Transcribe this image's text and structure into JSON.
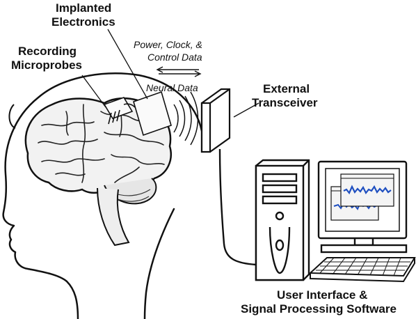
{
  "labels": {
    "implanted_line1": "Implanted",
    "implanted_line2": "Electronics",
    "recording_line1": "Recording",
    "recording_line2": "Microprobes",
    "power_line1": "Power, Clock, &",
    "power_line2": "Control Data",
    "neural_data": "Neural Data",
    "external_line1": "External",
    "external_line2": "Transceiver",
    "ui_line1": "User Interface &",
    "ui_line2": "Signal Processing Software"
  },
  "colors": {
    "outline": "#111111",
    "signal_trace": "#1f4fc0",
    "screen_window": "#f4f4f4"
  }
}
